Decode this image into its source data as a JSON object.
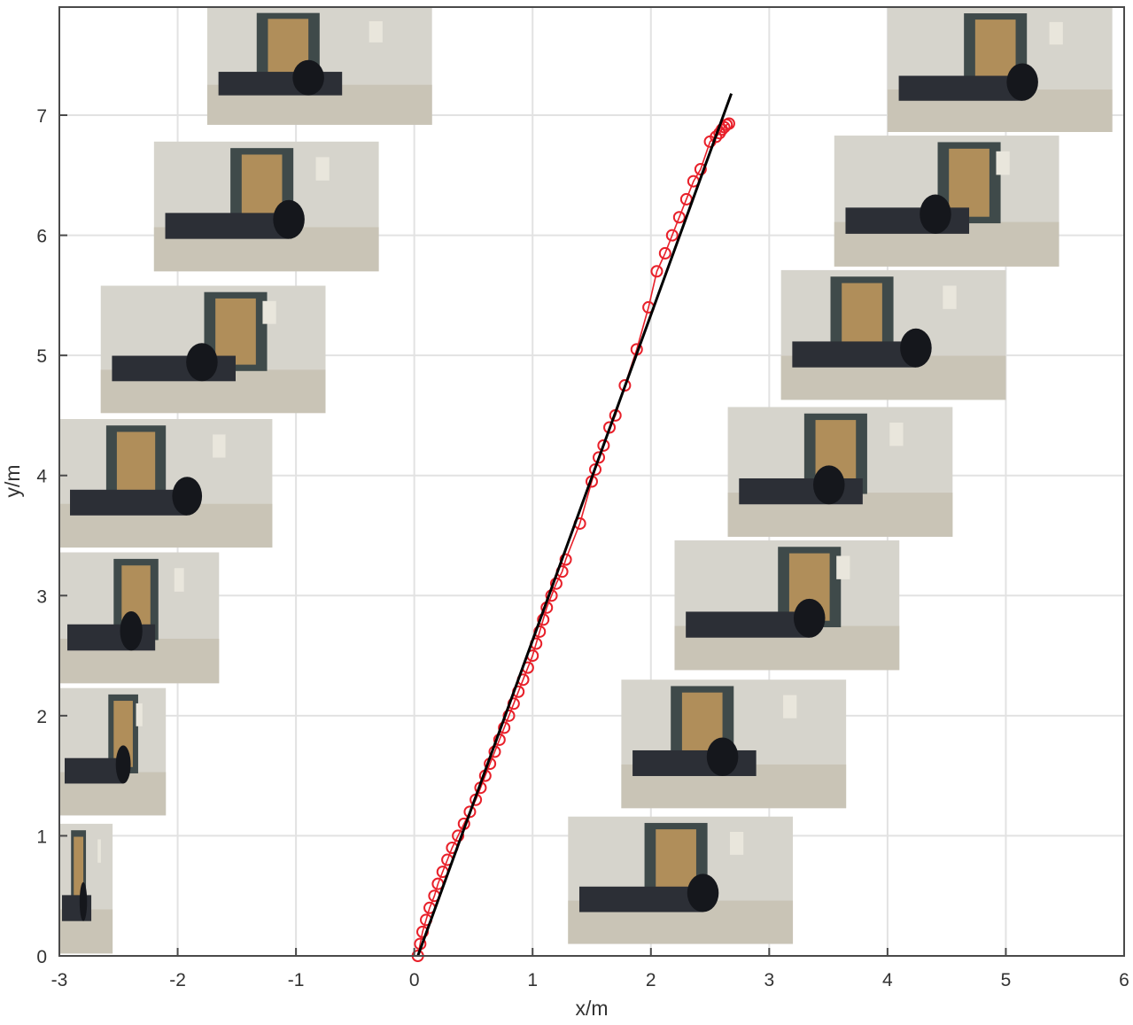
{
  "chart_data": {
    "type": "line",
    "xlabel": "x/m",
    "ylabel": "y/m",
    "xlim": [
      -3,
      6
    ],
    "ylim": [
      0,
      7.9
    ],
    "xticks": [
      -3,
      -2,
      -1,
      0,
      1,
      2,
      3,
      4,
      5,
      6
    ],
    "yticks": [
      0,
      1,
      2,
      3,
      4,
      5,
      6,
      7
    ],
    "xtick_labels": [
      "-3",
      "-2",
      "-1",
      "0",
      "1",
      "2",
      "3",
      "4",
      "5",
      "6"
    ],
    "ytick_labels": [
      "0",
      "1",
      "2",
      "3",
      "4",
      "5",
      "6",
      "7"
    ],
    "grid": true,
    "series": [
      {
        "marker": "circle",
        "color": "#e8202a",
        "x": [
          0.03,
          0.05,
          0.07,
          0.1,
          0.13,
          0.17,
          0.2,
          0.24,
          0.28,
          0.32,
          0.37,
          0.42,
          0.47,
          0.52,
          0.56,
          0.6,
          0.64,
          0.68,
          0.72,
          0.76,
          0.8,
          0.84,
          0.88,
          0.92,
          0.96,
          1.0,
          1.03,
          1.06,
          1.09,
          1.12,
          1.16,
          1.2,
          1.25,
          1.28,
          1.4,
          1.5,
          1.53,
          1.56,
          1.6,
          1.65,
          1.7,
          1.78,
          1.88,
          1.98,
          2.05,
          2.12,
          2.18,
          2.24,
          2.3,
          2.36,
          2.42,
          2.5,
          2.55,
          2.58,
          2.6,
          2.62,
          2.64,
          2.66
        ],
        "y": [
          0.0,
          0.1,
          0.2,
          0.3,
          0.4,
          0.5,
          0.6,
          0.7,
          0.8,
          0.9,
          1.0,
          1.1,
          1.2,
          1.3,
          1.4,
          1.5,
          1.6,
          1.7,
          1.8,
          1.9,
          2.0,
          2.1,
          2.2,
          2.3,
          2.4,
          2.5,
          2.6,
          2.7,
          2.8,
          2.9,
          3.0,
          3.1,
          3.2,
          3.3,
          3.6,
          3.95,
          4.05,
          4.15,
          4.25,
          4.4,
          4.5,
          4.75,
          5.05,
          5.4,
          5.7,
          5.85,
          6.0,
          6.15,
          6.3,
          6.45,
          6.55,
          6.78,
          6.82,
          6.85,
          6.88,
          6.9,
          6.92,
          6.93
        ]
      },
      {
        "marker": "none",
        "color": "#000000",
        "x": [
          0.03,
          2.68
        ],
        "y": [
          0.0,
          7.18
        ]
      }
    ],
    "thumbnails": [
      {
        "id": "thumb-left-1",
        "x0": -1.75,
        "x1": 0.15,
        "y0": 6.92,
        "y1": 7.98
      },
      {
        "id": "thumb-left-2",
        "x0": -2.2,
        "x1": -0.3,
        "y0": 5.7,
        "y1": 6.78
      },
      {
        "id": "thumb-left-3",
        "x0": -2.65,
        "x1": -0.75,
        "y0": 4.52,
        "y1": 5.58
      },
      {
        "id": "thumb-left-4",
        "x0": -3.1,
        "x1": -1.2,
        "y0": 3.4,
        "y1": 4.47
      },
      {
        "id": "thumb-left-5",
        "x0": -3.55,
        "x1": -1.65,
        "y0": 2.27,
        "y1": 3.36
      },
      {
        "id": "thumb-left-6",
        "x0": -4.0,
        "x1": -2.1,
        "y0": 1.17,
        "y1": 2.23
      },
      {
        "id": "thumb-left-7",
        "x0": -4.45,
        "x1": -2.55,
        "y0": 0.02,
        "y1": 1.1
      },
      {
        "id": "thumb-right-1",
        "x0": 4.0,
        "x1": 5.9,
        "y0": 6.86,
        "y1": 7.94
      },
      {
        "id": "thumb-right-2",
        "x0": 3.55,
        "x1": 5.45,
        "y0": 5.74,
        "y1": 6.83
      },
      {
        "id": "thumb-right-3",
        "x0": 3.1,
        "x1": 5.0,
        "y0": 4.63,
        "y1": 5.71
      },
      {
        "id": "thumb-right-4",
        "x0": 2.65,
        "x1": 4.55,
        "y0": 3.49,
        "y1": 4.57
      },
      {
        "id": "thumb-right-5",
        "x0": 2.2,
        "x1": 4.1,
        "y0": 2.38,
        "y1": 3.46
      },
      {
        "id": "thumb-right-6",
        "x0": 1.75,
        "x1": 3.65,
        "y0": 1.23,
        "y1": 2.3
      },
      {
        "id": "thumb-right-7",
        "x0": 1.3,
        "x1": 3.2,
        "y0": 0.1,
        "y1": 1.16
      }
    ]
  }
}
